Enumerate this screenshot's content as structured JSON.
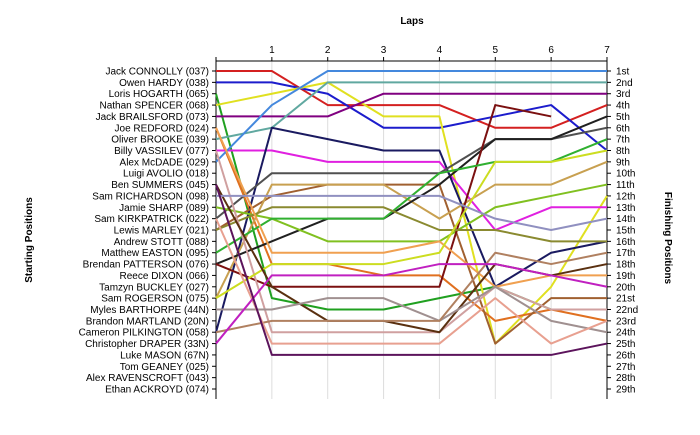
{
  "chart_data": {
    "type": "line",
    "title": "",
    "xlabel": "Laps",
    "ylabel_left": "Starting Positions",
    "ylabel_right": "Finishing Positions",
    "laps": [
      0,
      1,
      2,
      3,
      4,
      5,
      6,
      7
    ],
    "lap_labels": [
      "1",
      "2",
      "3",
      "4",
      "5",
      "6",
      "7"
    ],
    "ylim": [
      1,
      29
    ],
    "grid": "vertical",
    "starting_labels": [
      "Jack CONNOLLY (037)",
      "Owen HARDY (038)",
      "Loris HOGARTH (065)",
      "Nathan SPENCER (068)",
      "Jack BRAILSFORD (073)",
      "Joe REDFORD (024)",
      "Oliver BROOKE (039)",
      "Billy VASSILEV (077)",
      "Alex McDADE (029)",
      "Luigi AVOLIO (018)",
      "Ben SUMMERS (045)",
      "Sam RICHARDSON (098)",
      "Jamie SHARP (089)",
      "Sam KIRKPATRICK (022)",
      "Lewis MARLEY (021)",
      "Andrew STOTT (088)",
      "Matthew EASTON (095)",
      "Brendan PATTERSON (076)",
      "Reece DIXON (066)",
      "Tamzyn BUCKLEY (027)",
      "Sam ROGERSON (075)",
      "Myles BARTHORPE (44N)",
      "Brandon MARTLAND (20N)",
      "Cameron PILKINGTON (058)",
      "Christopher DRAPER (33N)",
      "Luke MASON (67N)",
      "Tom GEANEY (025)",
      "Alex RAVENSCROFT (043)",
      "Ethan ACKROYD (074)"
    ],
    "finishing_labels": [
      "1st",
      "2nd",
      "3rd",
      "4th",
      "5th",
      "6th",
      "7th",
      "8th",
      "9th",
      "10th",
      "11th",
      "12th",
      "13th",
      "14th",
      "15th",
      "16th",
      "17th",
      "18th",
      "19th",
      "20th",
      "21st",
      "22nd",
      "23rd",
      "24th",
      "25th",
      "26th",
      "27th",
      "28th",
      "29th"
    ],
    "series": [
      {
        "color": "#d42020",
        "positions": [
          1,
          1,
          4,
          4,
          4,
          6,
          6,
          4
        ]
      },
      {
        "color": "#1c1ccc",
        "positions": [
          2,
          2,
          3,
          6,
          6,
          5,
          4,
          8
        ]
      },
      {
        "color": "#20a020",
        "positions": [
          3,
          21,
          22,
          22,
          21,
          20,
          22,
          22
        ]
      },
      {
        "color": "#e0e020",
        "positions": [
          4,
          3,
          2,
          5,
          5,
          25,
          20,
          12
        ]
      },
      {
        "color": "#800080",
        "positions": [
          5,
          5,
          5,
          3,
          3,
          3,
          3,
          3
        ]
      },
      {
        "color": "#e07020",
        "positions": [
          6,
          18,
          18,
          19,
          19,
          23,
          22,
          23
        ]
      },
      {
        "color": "#60a8a0",
        "positions": [
          7,
          6,
          2,
          2,
          2,
          2,
          2,
          2
        ]
      },
      {
        "color": "#e020e0",
        "positions": [
          8,
          8,
          9,
          9,
          9,
          15,
          13,
          13
        ]
      },
      {
        "color": "#4488dd",
        "positions": [
          9,
          4,
          1,
          1,
          1,
          1,
          1,
          1
        ]
      },
      {
        "color": "#1a1a60",
        "positions": [
          24,
          6,
          7,
          8,
          8,
          20,
          17,
          16
        ]
      },
      {
        "color": "#a06030",
        "positions": [
          15,
          12,
          11,
          11,
          11,
          25,
          21,
          21
        ]
      },
      {
        "color": "#c8a050",
        "positions": [
          21,
          11,
          11,
          11,
          14,
          11,
          11,
          9
        ]
      },
      {
        "color": "#505050",
        "positions": [
          14,
          10,
          10,
          10,
          10,
          7,
          7,
          6
        ]
      },
      {
        "color": "#202020",
        "positions": [
          18,
          16,
          14,
          14,
          11,
          7,
          7,
          5
        ]
      },
      {
        "color": "#80c020",
        "positions": [
          13,
          14,
          16,
          16,
          16,
          13,
          12,
          11
        ]
      },
      {
        "color": "#7b1010",
        "positions": [
          18,
          20,
          20,
          20,
          20,
          4,
          5,
          null
        ]
      },
      {
        "color": "#30b030",
        "positions": [
          17,
          14,
          14,
          14,
          10,
          9,
          9,
          7
        ]
      },
      {
        "color": "#8a8a30",
        "positions": [
          15,
          13,
          13,
          13,
          15,
          15,
          16,
          16
        ]
      },
      {
        "color": "#d0a0a0",
        "positions": [
          8,
          24,
          24,
          24,
          24,
          20,
          22,
          22
        ]
      },
      {
        "color": "#f0a050",
        "positions": [
          6,
          17,
          17,
          17,
          16,
          20,
          19,
          19
        ]
      },
      {
        "color": "#ccdd20",
        "positions": [
          21,
          18,
          18,
          18,
          17,
          9,
          9,
          8
        ]
      },
      {
        "color": "#5a3010",
        "positions": [
          11,
          20,
          23,
          23,
          24,
          18,
          19,
          18
        ]
      },
      {
        "color": "#a09090",
        "positions": [
          22,
          22,
          21,
          21,
          23,
          20,
          23,
          24
        ]
      },
      {
        "color": "#b08060",
        "positions": [
          24,
          23,
          23,
          23,
          23,
          17,
          18,
          17
        ]
      },
      {
        "color": "#e8a090",
        "positions": [
          14,
          25,
          25,
          25,
          25,
          21,
          25,
          23
        ]
      },
      {
        "color": "#c020c0",
        "positions": [
          25,
          19,
          19,
          19,
          18,
          18,
          19,
          20
        ]
      },
      {
        "color": "#9090c0",
        "positions": [
          12,
          12,
          12,
          12,
          12,
          14,
          15,
          14
        ]
      },
      {
        "color": "#5c145c",
        "positions": [
          11,
          26,
          26,
          26,
          26,
          26,
          26,
          25
        ]
      }
    ]
  }
}
